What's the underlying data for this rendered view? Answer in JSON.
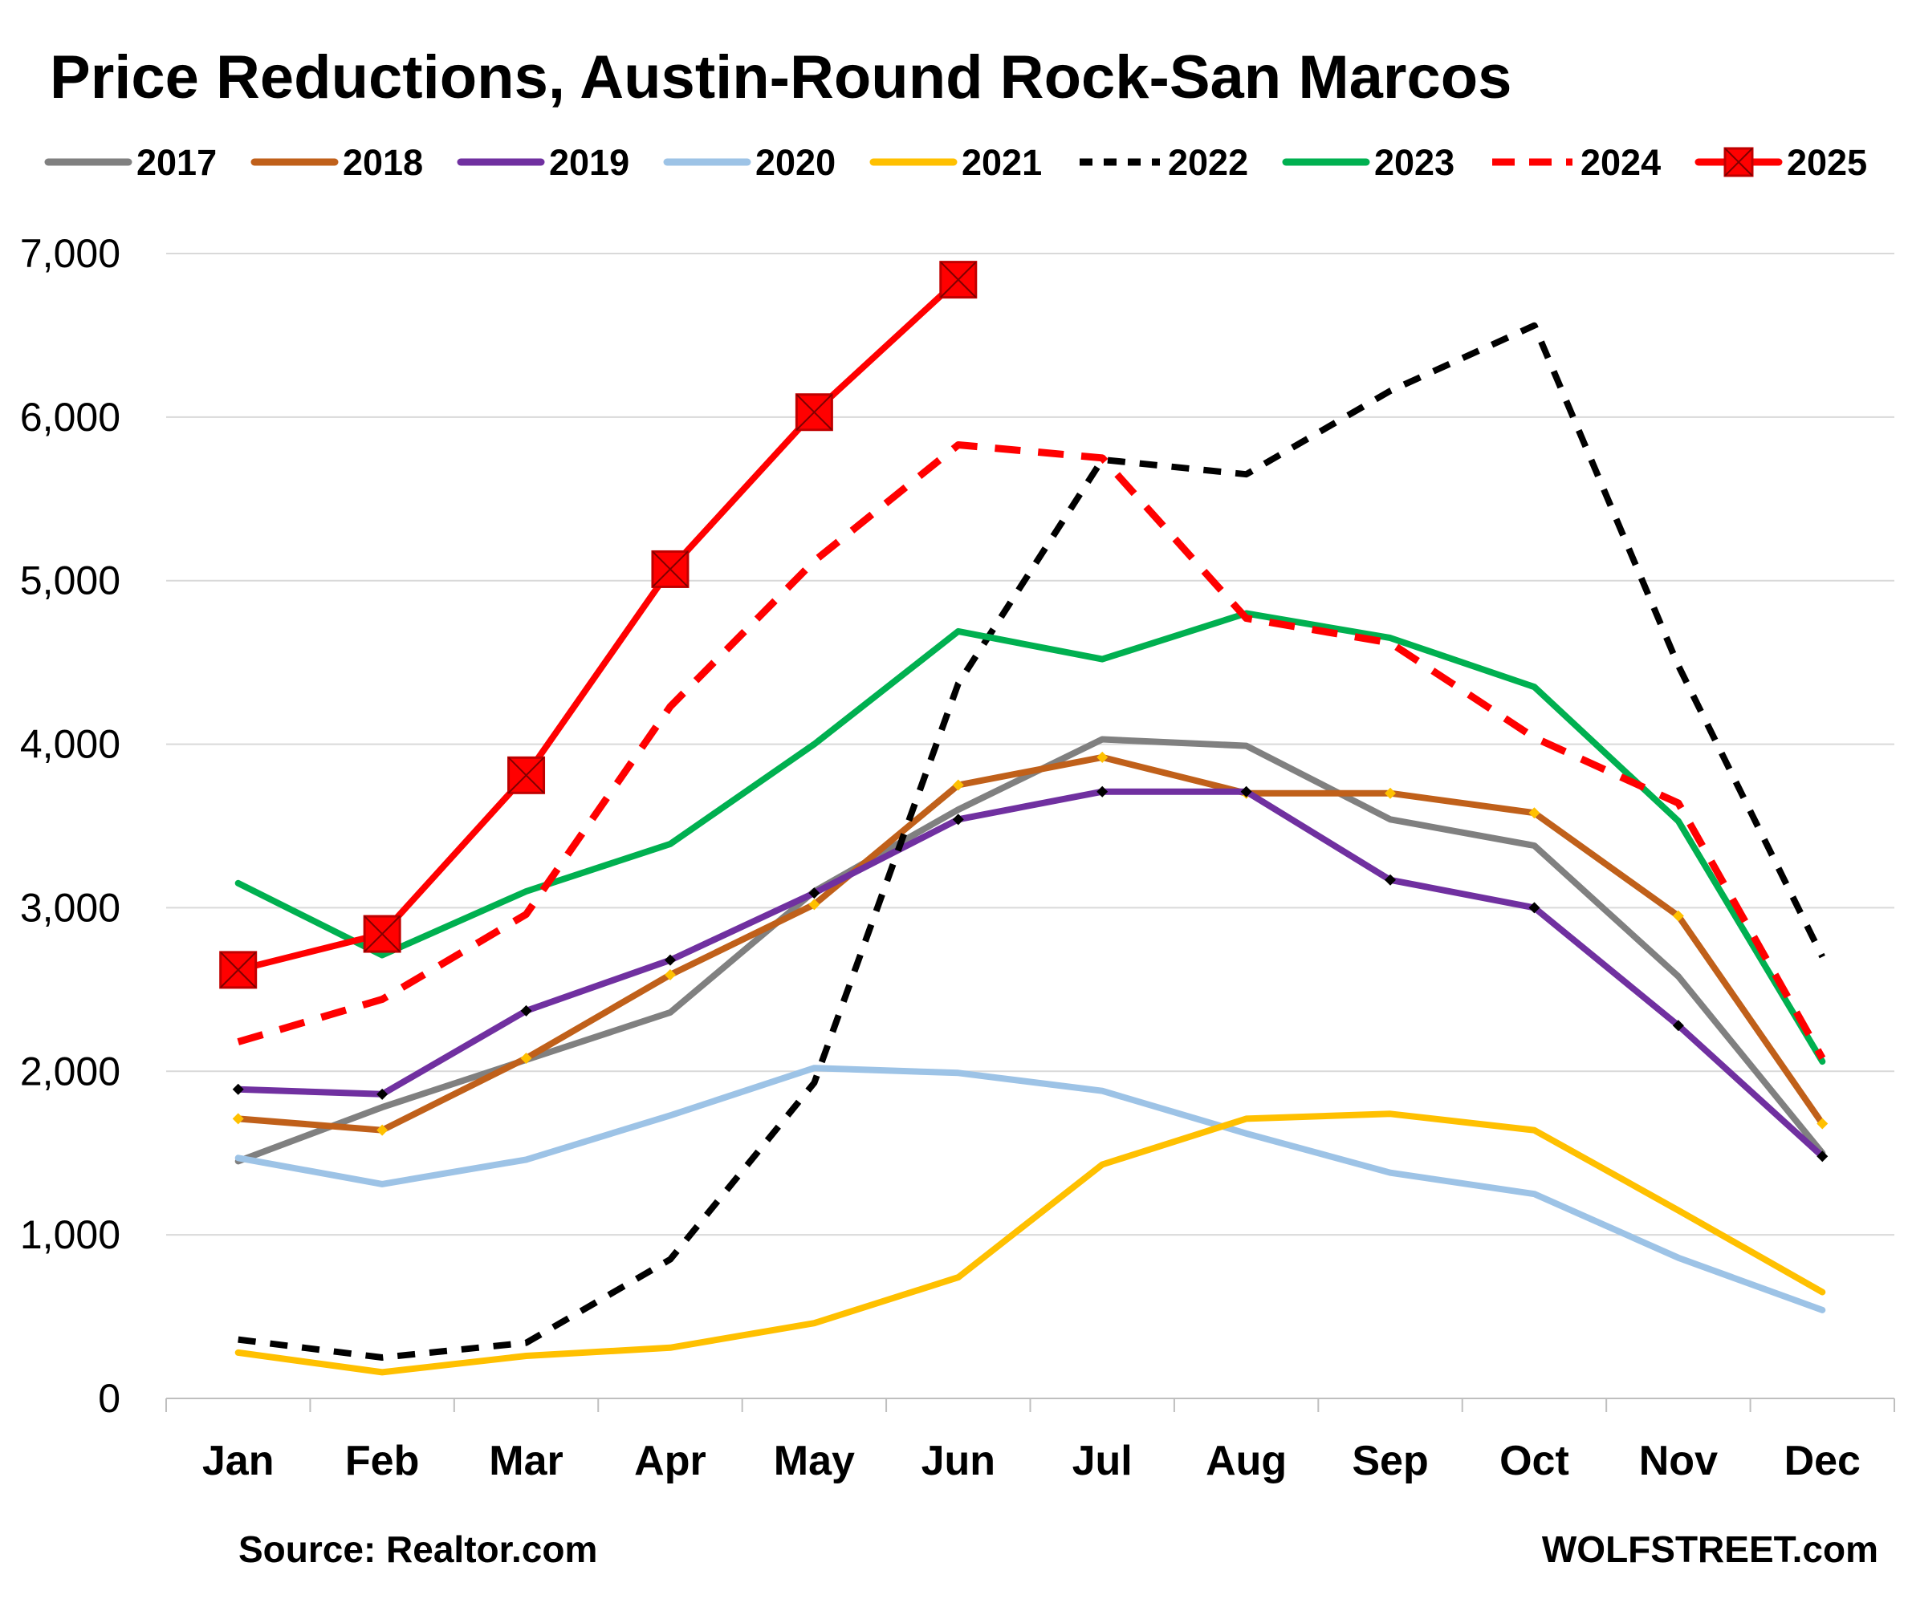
{
  "chart_data": {
    "type": "line",
    "title": "Price Reductions, Austin-Round Rock-San Marcos",
    "xlabel": "",
    "ylabel": "",
    "categories": [
      "Jan",
      "Feb",
      "Mar",
      "Apr",
      "May",
      "Jun",
      "Jul",
      "Aug",
      "Sep",
      "Oct",
      "Nov",
      "Dec"
    ],
    "ylim": [
      0,
      7000
    ],
    "yticks": [
      "0",
      "1,000",
      "2,000",
      "3,000",
      "4,000",
      "5,000",
      "6,000",
      "7,000"
    ],
    "grid": "horizontal",
    "legend_position": "top",
    "series": [
      {
        "name": "2017",
        "color": "#808080",
        "dash": "solid",
        "marker": "none",
        "values": [
          1450,
          1780,
          2070,
          2360,
          3100,
          3600,
          4030,
          3990,
          3540,
          3380,
          2580,
          1500
        ]
      },
      {
        "name": "2018",
        "color": "#C0601A",
        "dash": "solid",
        "marker": "small-diamond-yellow",
        "values": [
          1710,
          1640,
          2080,
          2590,
          3020,
          3750,
          3920,
          3700,
          3700,
          3580,
          2950,
          1680
        ]
      },
      {
        "name": "2019",
        "color": "#7030A0",
        "dash": "solid",
        "marker": "small-diamond-black",
        "values": [
          1890,
          1860,
          2370,
          2680,
          3090,
          3540,
          3710,
          3710,
          3170,
          3000,
          2280,
          1480
        ]
      },
      {
        "name": "2020",
        "color": "#9DC3E6",
        "dash": "solid",
        "marker": "none",
        "values": [
          1470,
          1310,
          1460,
          1730,
          2020,
          1990,
          1880,
          1620,
          1380,
          1250,
          860,
          540
        ]
      },
      {
        "name": "2021",
        "color": "#FFC000",
        "dash": "solid",
        "marker": "none",
        "values": [
          280,
          160,
          260,
          310,
          460,
          740,
          1430,
          1710,
          1740,
          1640,
          1150,
          650
        ]
      },
      {
        "name": "2022",
        "color": "#000000",
        "dash": "dashed",
        "marker": "none",
        "values": [
          360,
          250,
          340,
          850,
          1930,
          4370,
          5740,
          5650,
          6160,
          6560,
          4480,
          2700
        ]
      },
      {
        "name": "2023",
        "color": "#00B050",
        "dash": "solid",
        "marker": "none",
        "values": [
          3150,
          2710,
          3100,
          3390,
          4000,
          4690,
          4520,
          4800,
          4650,
          4350,
          3530,
          2060
        ]
      },
      {
        "name": "2024",
        "color": "#FF0000",
        "dash": "dashed",
        "marker": "none",
        "values": [
          2180,
          2440,
          2960,
          4230,
          5120,
          5830,
          5750,
          4770,
          4620,
          4040,
          3640,
          2080
        ]
      },
      {
        "name": "2025",
        "color": "#FF0000",
        "dash": "solid",
        "marker": "square-x",
        "values": [
          2620,
          2840,
          3810,
          5070,
          6030,
          6840,
          null,
          null,
          null,
          null,
          null,
          null
        ]
      }
    ]
  },
  "footer": {
    "source": "Source: Realtor.com",
    "brand": "WOLFSTREET.com"
  }
}
